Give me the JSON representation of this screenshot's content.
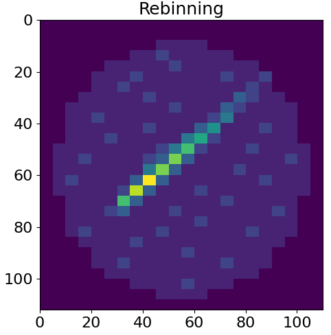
{
  "chart_data": {
    "type": "heatmap",
    "title": "Rebinning",
    "color": "viridis",
    "xlim": [
      0,
      110
    ],
    "ylim": [
      112,
      0
    ],
    "xticks": [
      0,
      20,
      40,
      60,
      80,
      100
    ],
    "yticks": [
      0,
      20,
      40,
      60,
      80,
      100
    ],
    "cells": [
      [
        0,
        0,
        0,
        0,
        0,
        0,
        0,
        0,
        0,
        0,
        0,
        0,
        0,
        0,
        0,
        0,
        0,
        0,
        0,
        0,
        0,
        0
      ],
      [
        0,
        0,
        0,
        0,
        0,
        0,
        0,
        0,
        0,
        0,
        0,
        0,
        0,
        0,
        0,
        0,
        0,
        0,
        0,
        0,
        0,
        0
      ],
      [
        0,
        0,
        0,
        0,
        0,
        0,
        0,
        0,
        0,
        1,
        1,
        1,
        1,
        0,
        0,
        0,
        0,
        0,
        0,
        0,
        0,
        0
      ],
      [
        0,
        0,
        0,
        0,
        0,
        0,
        0,
        1,
        1,
        2,
        1,
        1,
        1,
        1,
        1,
        0,
        0,
        0,
        0,
        0,
        0,
        0
      ],
      [
        0,
        0,
        0,
        0,
        0,
        1,
        1,
        1,
        1,
        1,
        2,
        1,
        1,
        1,
        1,
        1,
        1,
        0,
        0,
        0,
        0,
        0
      ],
      [
        0,
        0,
        0,
        0,
        1,
        1,
        1,
        2,
        1,
        1,
        1,
        1,
        1,
        1,
        2,
        1,
        1,
        2,
        0,
        0,
        0,
        0
      ],
      [
        0,
        0,
        0,
        0,
        1,
        1,
        2,
        1,
        1,
        1,
        1,
        1,
        1,
        1,
        1,
        1,
        2,
        1,
        0,
        0,
        0,
        0
      ],
      [
        0,
        0,
        0,
        1,
        1,
        1,
        1,
        1,
        2,
        1,
        1,
        1,
        1,
        1,
        1,
        3,
        2,
        1,
        1,
        0,
        0,
        0
      ],
      [
        0,
        0,
        1,
        1,
        1,
        1,
        1,
        1,
        1,
        1,
        2,
        1,
        1,
        1,
        3,
        2,
        1,
        1,
        1,
        1,
        0,
        0
      ],
      [
        0,
        0,
        1,
        1,
        2,
        1,
        1,
        1,
        1,
        1,
        1,
        1,
        1,
        2,
        4,
        1,
        1,
        1,
        1,
        1,
        0,
        0
      ],
      [
        0,
        0,
        1,
        1,
        1,
        1,
        1,
        1,
        2,
        1,
        1,
        1,
        3,
        5,
        1,
        1,
        1,
        2,
        1,
        1,
        0,
        0
      ],
      [
        0,
        0,
        1,
        1,
        1,
        2,
        1,
        1,
        1,
        1,
        1,
        4,
        6,
        2,
        1,
        1,
        1,
        1,
        1,
        1,
        0,
        0
      ],
      [
        0,
        1,
        1,
        1,
        1,
        1,
        1,
        1,
        1,
        2,
        4,
        7,
        2,
        1,
        1,
        1,
        2,
        1,
        1,
        1,
        1,
        0
      ],
      [
        0,
        1,
        1,
        2,
        1,
        1,
        1,
        1,
        2,
        3,
        8,
        3,
        1,
        1,
        1,
        1,
        1,
        1,
        1,
        2,
        1,
        0
      ],
      [
        0,
        1,
        1,
        1,
        1,
        1,
        1,
        1,
        4,
        8,
        3,
        1,
        1,
        1,
        1,
        2,
        1,
        1,
        1,
        1,
        1,
        0
      ],
      [
        0,
        1,
        2,
        1,
        1,
        1,
        1,
        3,
        10,
        3,
        1,
        1,
        1,
        1,
        1,
        1,
        1,
        2,
        1,
        1,
        1,
        0
      ],
      [
        0,
        1,
        1,
        1,
        1,
        1,
        2,
        9,
        3,
        1,
        1,
        1,
        2,
        1,
        1,
        1,
        1,
        1,
        1,
        1,
        1,
        0
      ],
      [
        0,
        0,
        1,
        1,
        1,
        1,
        7,
        3,
        1,
        1,
        1,
        1,
        1,
        1,
        2,
        1,
        1,
        1,
        1,
        1,
        0,
        0
      ],
      [
        0,
        0,
        1,
        1,
        1,
        2,
        3,
        1,
        1,
        1,
        2,
        1,
        1,
        1,
        1,
        1,
        1,
        1,
        2,
        1,
        0,
        0
      ],
      [
        0,
        0,
        1,
        1,
        1,
        1,
        1,
        1,
        1,
        1,
        1,
        1,
        2,
        1,
        1,
        1,
        1,
        1,
        1,
        1,
        0,
        0
      ],
      [
        0,
        0,
        1,
        2,
        1,
        1,
        1,
        1,
        1,
        2,
        1,
        1,
        1,
        1,
        1,
        1,
        2,
        1,
        1,
        1,
        0,
        0
      ],
      [
        0,
        0,
        0,
        1,
        1,
        1,
        1,
        2,
        1,
        1,
        1,
        1,
        1,
        1,
        1,
        1,
        1,
        1,
        1,
        0,
        0,
        0
      ],
      [
        0,
        0,
        0,
        0,
        1,
        1,
        1,
        1,
        1,
        1,
        1,
        2,
        1,
        1,
        1,
        1,
        1,
        1,
        0,
        0,
        0,
        0
      ],
      [
        0,
        0,
        0,
        0,
        1,
        1,
        2,
        1,
        1,
        1,
        1,
        1,
        1,
        1,
        2,
        1,
        1,
        1,
        0,
        0,
        0,
        0
      ],
      [
        0,
        0,
        0,
        0,
        0,
        1,
        1,
        1,
        1,
        1,
        1,
        1,
        1,
        1,
        1,
        1,
        1,
        0,
        0,
        0,
        0,
        0
      ],
      [
        0,
        0,
        0,
        0,
        0,
        0,
        0,
        1,
        1,
        1,
        1,
        2,
        1,
        1,
        1,
        0,
        0,
        0,
        0,
        0,
        0,
        0
      ],
      [
        0,
        0,
        0,
        0,
        0,
        0,
        0,
        0,
        0,
        1,
        1,
        1,
        1,
        0,
        0,
        0,
        0,
        0,
        0,
        0,
        0,
        0
      ],
      [
        0,
        0,
        0,
        0,
        0,
        0,
        0,
        0,
        0,
        0,
        0,
        0,
        0,
        0,
        0,
        0,
        0,
        0,
        0,
        0,
        0,
        0
      ]
    ]
  }
}
